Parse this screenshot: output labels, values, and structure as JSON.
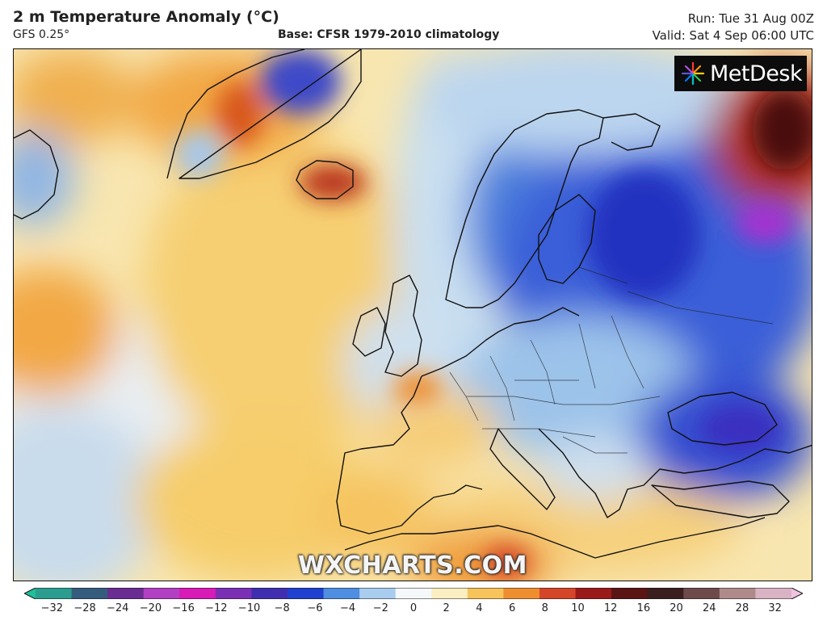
{
  "header": {
    "title": "2 m Temperature Anomaly (°C)",
    "model": "GFS 0.25°",
    "base": "Base: CFSR 1979-2010 climatology",
    "run": "Run: Tue 31 Aug 00Z",
    "valid": "Valid: Sat 4 Sep 06:00 UTC"
  },
  "logo": {
    "text": "MetDesk",
    "icon": "metdesk-starburst-icon"
  },
  "watermark": "WXCHARTS.COM",
  "colorbar": {
    "labels": [
      "−32",
      "−28",
      "−24",
      "−20",
      "−16",
      "−12",
      "−10",
      "−8",
      "−6",
      "−4",
      "−2",
      "0",
      "2",
      "4",
      "6",
      "8",
      "10",
      "12",
      "16",
      "20",
      "24",
      "28",
      "32"
    ],
    "colors": [
      "#1fbf9a",
      "#2a9d8f",
      "#355c7d",
      "#6a2c91",
      "#b23fc4",
      "#d81bb6",
      "#7a2fb5",
      "#3f2fb0",
      "#2040d0",
      "#4f8ee0",
      "#a9cdee",
      "#f4f8fb",
      "#fbeec2",
      "#f6c45a",
      "#ef8e2f",
      "#d4452a",
      "#9a1a1a",
      "#5a1414",
      "#3b1f1f",
      "#6e4a4a",
      "#b08a8a",
      "#d9b3c4",
      "#f0c4e0"
    ]
  },
  "map": {
    "region": "Europe and North Atlantic",
    "colors": {
      "ocean_warm": "#fbe3a4",
      "warm": "#f6c45a",
      "hot": "#ef8e2f",
      "very_hot": "#b8331e",
      "neutral": "#f4f1e6",
      "cool": "#a9cdee",
      "cold": "#4f7fe0",
      "very_cold": "#2a3fc9",
      "extreme_cold": "#a52fd0",
      "extreme_hot": "#4a1010"
    }
  }
}
